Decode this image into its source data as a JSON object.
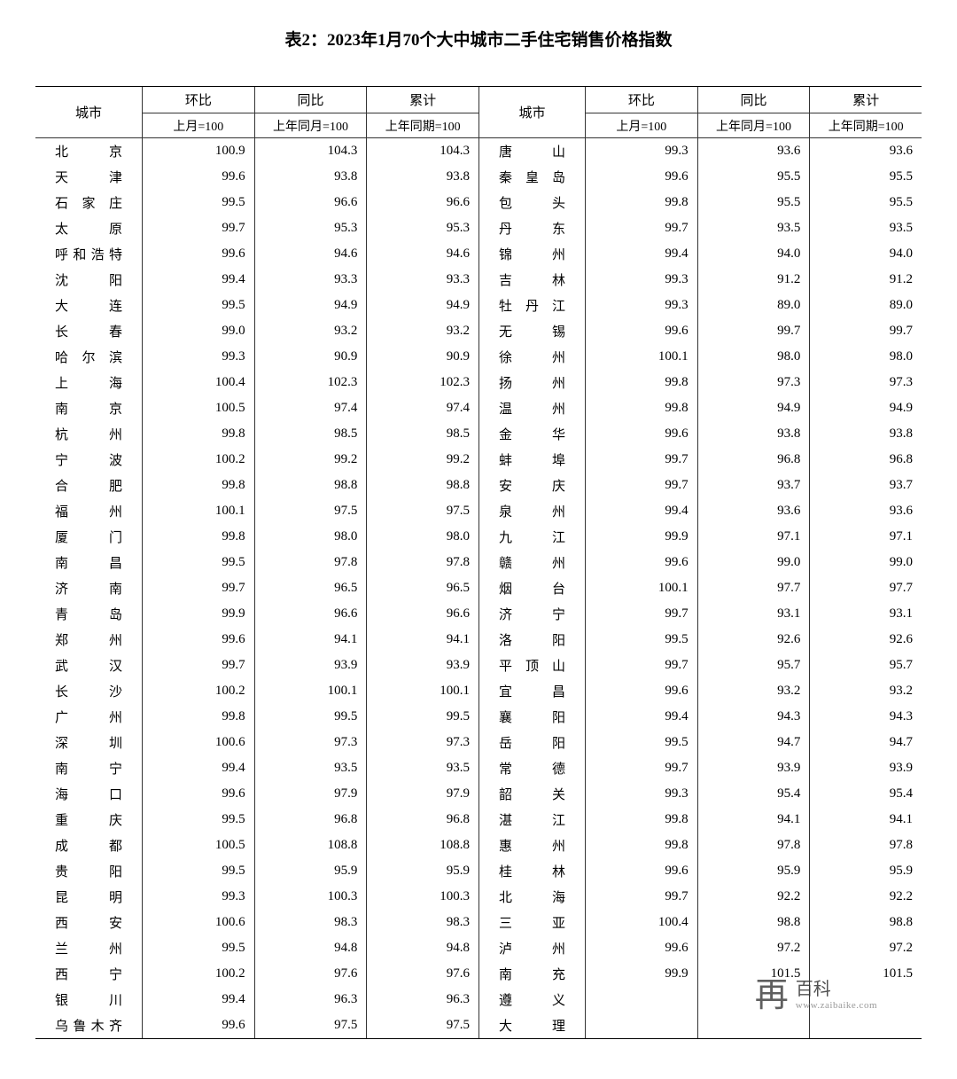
{
  "title": "表2：2023年1月70个大中城市二手住宅销售价格指数",
  "headers": {
    "city": "城市",
    "mom": "环比",
    "mom_sub": "上月=100",
    "yoy": "同比",
    "yoy_sub": "上年同月=100",
    "cum": "累计",
    "cum_sub": "上年同期=100"
  },
  "watermark": {
    "brand": "百科",
    "domain": "www.zaibaike.com",
    "mark": "再"
  },
  "left": [
    {
      "city": "北京",
      "mom": "100.9",
      "yoy": "104.3",
      "cum": "104.3"
    },
    {
      "city": "天津",
      "mom": "99.6",
      "yoy": "93.8",
      "cum": "93.8"
    },
    {
      "city": "石家庄",
      "mom": "99.5",
      "yoy": "96.6",
      "cum": "96.6"
    },
    {
      "city": "太原",
      "mom": "99.7",
      "yoy": "95.3",
      "cum": "95.3"
    },
    {
      "city": "呼和浩特",
      "mom": "99.6",
      "yoy": "94.6",
      "cum": "94.6"
    },
    {
      "city": "沈阳",
      "mom": "99.4",
      "yoy": "93.3",
      "cum": "93.3"
    },
    {
      "city": "大连",
      "mom": "99.5",
      "yoy": "94.9",
      "cum": "94.9"
    },
    {
      "city": "长春",
      "mom": "99.0",
      "yoy": "93.2",
      "cum": "93.2"
    },
    {
      "city": "哈尔滨",
      "mom": "99.3",
      "yoy": "90.9",
      "cum": "90.9"
    },
    {
      "city": "上海",
      "mom": "100.4",
      "yoy": "102.3",
      "cum": "102.3"
    },
    {
      "city": "南京",
      "mom": "100.5",
      "yoy": "97.4",
      "cum": "97.4"
    },
    {
      "city": "杭州",
      "mom": "99.8",
      "yoy": "98.5",
      "cum": "98.5"
    },
    {
      "city": "宁波",
      "mom": "100.2",
      "yoy": "99.2",
      "cum": "99.2"
    },
    {
      "city": "合肥",
      "mom": "99.8",
      "yoy": "98.8",
      "cum": "98.8"
    },
    {
      "city": "福州",
      "mom": "100.1",
      "yoy": "97.5",
      "cum": "97.5"
    },
    {
      "city": "厦门",
      "mom": "99.8",
      "yoy": "98.0",
      "cum": "98.0"
    },
    {
      "city": "南昌",
      "mom": "99.5",
      "yoy": "97.8",
      "cum": "97.8"
    },
    {
      "city": "济南",
      "mom": "99.7",
      "yoy": "96.5",
      "cum": "96.5"
    },
    {
      "city": "青岛",
      "mom": "99.9",
      "yoy": "96.6",
      "cum": "96.6"
    },
    {
      "city": "郑州",
      "mom": "99.6",
      "yoy": "94.1",
      "cum": "94.1"
    },
    {
      "city": "武汉",
      "mom": "99.7",
      "yoy": "93.9",
      "cum": "93.9"
    },
    {
      "city": "长沙",
      "mom": "100.2",
      "yoy": "100.1",
      "cum": "100.1"
    },
    {
      "city": "广州",
      "mom": "99.8",
      "yoy": "99.5",
      "cum": "99.5"
    },
    {
      "city": "深圳",
      "mom": "100.6",
      "yoy": "97.3",
      "cum": "97.3"
    },
    {
      "city": "南宁",
      "mom": "99.4",
      "yoy": "93.5",
      "cum": "93.5"
    },
    {
      "city": "海口",
      "mom": "99.6",
      "yoy": "97.9",
      "cum": "97.9"
    },
    {
      "city": "重庆",
      "mom": "99.5",
      "yoy": "96.8",
      "cum": "96.8"
    },
    {
      "city": "成都",
      "mom": "100.5",
      "yoy": "108.8",
      "cum": "108.8"
    },
    {
      "city": "贵阳",
      "mom": "99.5",
      "yoy": "95.9",
      "cum": "95.9"
    },
    {
      "city": "昆明",
      "mom": "99.3",
      "yoy": "100.3",
      "cum": "100.3"
    },
    {
      "city": "西安",
      "mom": "100.6",
      "yoy": "98.3",
      "cum": "98.3"
    },
    {
      "city": "兰州",
      "mom": "99.5",
      "yoy": "94.8",
      "cum": "94.8"
    },
    {
      "city": "西宁",
      "mom": "100.2",
      "yoy": "97.6",
      "cum": "97.6"
    },
    {
      "city": "银川",
      "mom": "99.4",
      "yoy": "96.3",
      "cum": "96.3"
    },
    {
      "city": "乌鲁木齐",
      "mom": "99.6",
      "yoy": "97.5",
      "cum": "97.5"
    }
  ],
  "right": [
    {
      "city": "唐山",
      "mom": "99.3",
      "yoy": "93.6",
      "cum": "93.6"
    },
    {
      "city": "秦皇岛",
      "mom": "99.6",
      "yoy": "95.5",
      "cum": "95.5"
    },
    {
      "city": "包头",
      "mom": "99.8",
      "yoy": "95.5",
      "cum": "95.5"
    },
    {
      "city": "丹东",
      "mom": "99.7",
      "yoy": "93.5",
      "cum": "93.5"
    },
    {
      "city": "锦州",
      "mom": "99.4",
      "yoy": "94.0",
      "cum": "94.0"
    },
    {
      "city": "吉林",
      "mom": "99.3",
      "yoy": "91.2",
      "cum": "91.2"
    },
    {
      "city": "牡丹江",
      "mom": "99.3",
      "yoy": "89.0",
      "cum": "89.0"
    },
    {
      "city": "无锡",
      "mom": "99.6",
      "yoy": "99.7",
      "cum": "99.7"
    },
    {
      "city": "徐州",
      "mom": "100.1",
      "yoy": "98.0",
      "cum": "98.0"
    },
    {
      "city": "扬州",
      "mom": "99.8",
      "yoy": "97.3",
      "cum": "97.3"
    },
    {
      "city": "温州",
      "mom": "99.8",
      "yoy": "94.9",
      "cum": "94.9"
    },
    {
      "city": "金华",
      "mom": "99.6",
      "yoy": "93.8",
      "cum": "93.8"
    },
    {
      "city": "蚌埠",
      "mom": "99.7",
      "yoy": "96.8",
      "cum": "96.8"
    },
    {
      "city": "安庆",
      "mom": "99.7",
      "yoy": "93.7",
      "cum": "93.7"
    },
    {
      "city": "泉州",
      "mom": "99.4",
      "yoy": "93.6",
      "cum": "93.6"
    },
    {
      "city": "九江",
      "mom": "99.9",
      "yoy": "97.1",
      "cum": "97.1"
    },
    {
      "city": "赣州",
      "mom": "99.6",
      "yoy": "99.0",
      "cum": "99.0"
    },
    {
      "city": "烟台",
      "mom": "100.1",
      "yoy": "97.7",
      "cum": "97.7"
    },
    {
      "city": "济宁",
      "mom": "99.7",
      "yoy": "93.1",
      "cum": "93.1"
    },
    {
      "city": "洛阳",
      "mom": "99.5",
      "yoy": "92.6",
      "cum": "92.6"
    },
    {
      "city": "平顶山",
      "mom": "99.7",
      "yoy": "95.7",
      "cum": "95.7"
    },
    {
      "city": "宜昌",
      "mom": "99.6",
      "yoy": "93.2",
      "cum": "93.2"
    },
    {
      "city": "襄阳",
      "mom": "99.4",
      "yoy": "94.3",
      "cum": "94.3"
    },
    {
      "city": "岳阳",
      "mom": "99.5",
      "yoy": "94.7",
      "cum": "94.7"
    },
    {
      "city": "常德",
      "mom": "99.7",
      "yoy": "93.9",
      "cum": "93.9"
    },
    {
      "city": "韶关",
      "mom": "99.3",
      "yoy": "95.4",
      "cum": "95.4"
    },
    {
      "city": "湛江",
      "mom": "99.8",
      "yoy": "94.1",
      "cum": "94.1"
    },
    {
      "city": "惠州",
      "mom": "99.8",
      "yoy": "97.8",
      "cum": "97.8"
    },
    {
      "city": "桂林",
      "mom": "99.6",
      "yoy": "95.9",
      "cum": "95.9"
    },
    {
      "city": "北海",
      "mom": "99.7",
      "yoy": "92.2",
      "cum": "92.2"
    },
    {
      "city": "三亚",
      "mom": "100.4",
      "yoy": "98.8",
      "cum": "98.8"
    },
    {
      "city": "泸州",
      "mom": "99.6",
      "yoy": "97.2",
      "cum": "97.2"
    },
    {
      "city": "南充",
      "mom": "99.9",
      "yoy": "101.5",
      "cum": "101.5"
    },
    {
      "city": "遵义",
      "mom": "",
      "yoy": "",
      "cum": ""
    },
    {
      "city": "大理",
      "mom": "",
      "yoy": "",
      "cum": ""
    }
  ]
}
